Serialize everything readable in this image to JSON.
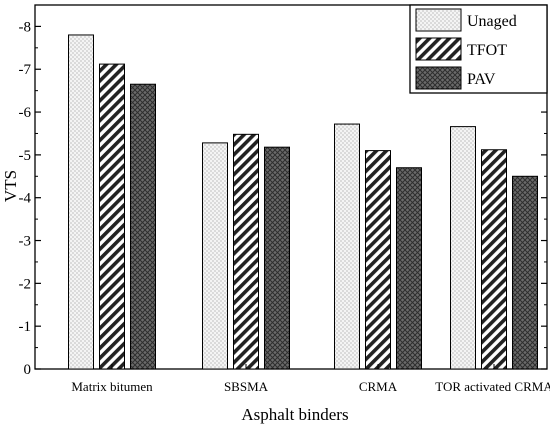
{
  "chart_data": {
    "type": "bar",
    "title": "",
    "xlabel": "Asphalt binders",
    "ylabel": "VTS",
    "categories": [
      "Matrix bitumen",
      "SBSMA",
      "CRMA",
      "TOR activated CRMA"
    ],
    "series": [
      {
        "name": "Unaged",
        "values": [
          -7.8,
          -5.28,
          -5.72,
          -5.66
        ],
        "pattern": "dots",
        "color": "#f2f2f2"
      },
      {
        "name": "TFOT",
        "values": [
          -7.12,
          -5.48,
          -5.1,
          -5.12
        ],
        "pattern": "diagonal",
        "color": "#ffffff"
      },
      {
        "name": "PAV",
        "values": [
          -6.65,
          -5.18,
          -4.7,
          -4.5
        ],
        "pattern": "crosshatch",
        "color": "#555555"
      }
    ],
    "ylim": [
      0,
      -8.5
    ],
    "yticks": [
      0,
      -1,
      -2,
      -3,
      -4,
      -5,
      -6,
      -7,
      -8
    ],
    "ytick_labels": [
      "0",
      "-1",
      "-2",
      "-3",
      "-4",
      "-5",
      "-6",
      "-7",
      "-8"
    ],
    "legend_position": "top-right",
    "grid": false
  }
}
